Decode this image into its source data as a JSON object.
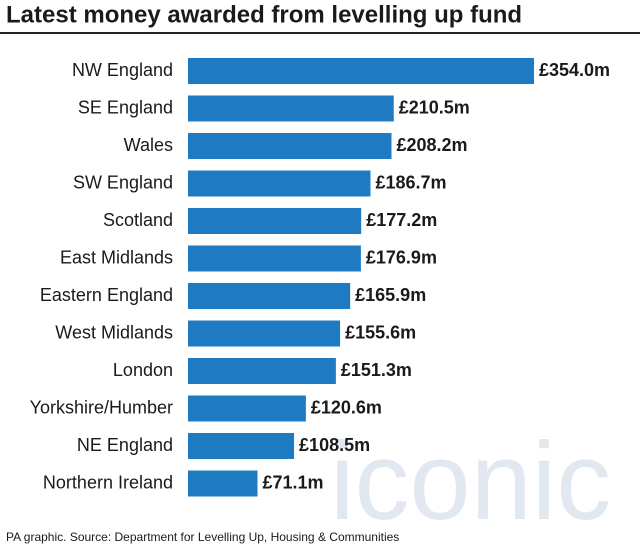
{
  "chart_data": {
    "type": "bar",
    "orientation": "horizontal",
    "title": "Latest money awarded from levelling up fund",
    "source": "PA graphic. Source: Department for Levelling Up, Housing & Communities",
    "watermark": "iconic",
    "color": "#1f7bc1",
    "categories": [
      "NW England",
      "SE England",
      "Wales",
      "SW England",
      "Scotland",
      "East Midlands",
      "Eastern England",
      "West Midlands",
      "London",
      "Yorkshire/Humber",
      "NE England",
      "Northern Ireland"
    ],
    "values": [
      354.0,
      210.5,
      208.2,
      186.7,
      177.2,
      176.9,
      165.9,
      155.6,
      151.3,
      120.6,
      108.5,
      71.1
    ],
    "value_labels": [
      "£354.0m",
      "£210.5m",
      "£208.2m",
      "£186.7m",
      "£177.2m",
      "£176.9m",
      "£165.9m",
      "£155.6m",
      "£151.3m",
      "£120.6m",
      "£108.5m",
      "£71.1m"
    ]
  }
}
